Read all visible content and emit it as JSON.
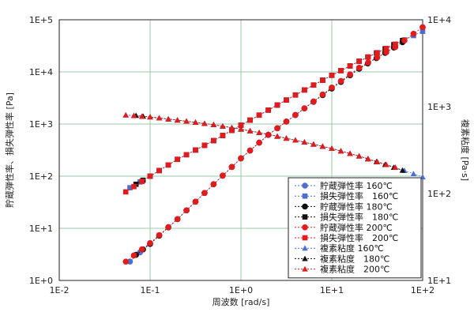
{
  "chart_data": {
    "type": "scatter",
    "xlabel": "周波数 [rad/s]",
    "ylabel_left": "貯蔵弾性率、損失弾性率 [Pa]",
    "ylabel_right": "複素粘度 [Pa·s]",
    "x_scale": "log",
    "y_scale_left": "log",
    "y_scale_right": "log",
    "xlim": [
      0.01,
      100
    ],
    "ylim_left": [
      1,
      100000
    ],
    "ylim_right": [
      10,
      10000
    ],
    "grid": true,
    "legend_position": "lower-right",
    "x_tick_labels": [
      "1E-2",
      "1E-1",
      "1E+0",
      "1E+1",
      "1E+2"
    ],
    "y_tick_labels_left": [
      "1E+0",
      "1E+1",
      "1E+2",
      "1E+3",
      "1E+4",
      "1E+5"
    ],
    "y_tick_labels_right": [
      "1E+1",
      "1E+2",
      "1E+3",
      "1E+4"
    ],
    "series": [
      {
        "name": "貯蔵弾性率 160℃",
        "axis": "left",
        "marker": "circle",
        "color": "#4a6fd0",
        "x": [
          0.06,
          0.1,
          0.2,
          0.5,
          1,
          2,
          5,
          10,
          20,
          50,
          100
        ],
        "y": [
          2.3,
          5.2,
          15,
          70,
          220,
          620,
          2000,
          5000,
          12000,
          30000,
          72000
        ]
      },
      {
        "name": "損失弾性率　160℃",
        "axis": "left",
        "marker": "square",
        "color": "#4a6fd0",
        "x": [
          0.06,
          0.1,
          0.2,
          0.5,
          1,
          2,
          5,
          10,
          20,
          50,
          100
        ],
        "y": [
          60,
          100,
          210,
          480,
          950,
          1850,
          4500,
          8600,
          16000,
          34000,
          60000
        ]
      },
      {
        "name": "貯蔵弾性率 180℃",
        "axis": "left",
        "marker": "circle",
        "color": "#111111",
        "x": [
          0.07,
          0.1,
          0.2,
          0.5,
          1,
          2,
          5,
          10,
          20,
          60
        ],
        "y": [
          3.1,
          5.0,
          15,
          70,
          220,
          620,
          2000,
          4800,
          11500,
          37000
        ]
      },
      {
        "name": "損失弾性率　180℃",
        "axis": "left",
        "marker": "square",
        "color": "#111111",
        "x": [
          0.07,
          0.1,
          0.2,
          0.5,
          1,
          2,
          5,
          10,
          20,
          60
        ],
        "y": [
          70,
          100,
          210,
          480,
          950,
          1850,
          4500,
          8600,
          16000,
          40000
        ]
      },
      {
        "name": "貯蔵弾性率 200℃",
        "axis": "left",
        "marker": "circle",
        "color": "#e21c1c",
        "x": [
          0.054,
          0.1,
          0.2,
          0.5,
          1,
          2,
          5,
          10,
          20,
          50,
          100
        ],
        "y": [
          2.3,
          5.2,
          15,
          70,
          220,
          620,
          2000,
          5000,
          12000,
          30000,
          72000
        ]
      },
      {
        "name": "損失弾性率　200℃",
        "axis": "left",
        "marker": "square",
        "color": "#e21c1c",
        "x": [
          0.054,
          0.1,
          0.2,
          0.5,
          1,
          2,
          5,
          10,
          20,
          50
        ],
        "y": [
          50,
          100,
          210,
          480,
          950,
          1850,
          4500,
          8600,
          16000,
          34000
        ]
      },
      {
        "name": "複素粘度 160℃",
        "axis": "right",
        "marker": "triangle",
        "color": "#4a6fd0",
        "x": [
          0.054,
          0.1,
          0.2,
          0.5,
          1,
          2,
          5,
          10,
          20,
          50,
          100
        ],
        "y": [
          800,
          760,
          700,
          620,
          550,
          480,
          390,
          330,
          270,
          200,
          155
        ]
      },
      {
        "name": "複素粘度　180℃",
        "axis": "right",
        "marker": "triangle",
        "color": "#111111",
        "x": [
          0.07,
          0.1,
          0.2,
          0.5,
          1,
          2,
          5,
          10,
          20,
          60
        ],
        "y": [
          790,
          760,
          700,
          620,
          550,
          480,
          390,
          330,
          270,
          185
        ]
      },
      {
        "name": "複素粘度　200℃",
        "axis": "right",
        "marker": "triangle",
        "color": "#e21c1c",
        "x": [
          0.054,
          0.1,
          0.2,
          0.5,
          1,
          2,
          5,
          10,
          20,
          50
        ],
        "y": [
          800,
          760,
          700,
          620,
          550,
          480,
          390,
          330,
          270,
          200
        ]
      }
    ]
  }
}
